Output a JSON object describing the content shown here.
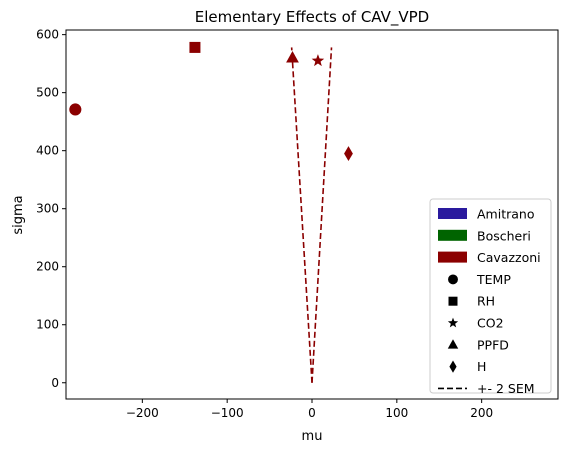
{
  "chart_data": {
    "type": "scatter",
    "title": "Elementary Effects of CAV_VPD",
    "xlabel": "mu",
    "ylabel": "sigma",
    "xlim": [
      -290,
      290
    ],
    "ylim": [
      -28,
      608
    ],
    "xticks": [
      -200,
      -100,
      0,
      100,
      200
    ],
    "xtick_labels": [
      "−200",
      "−100",
      "0",
      "100",
      "200"
    ],
    "yticks": [
      0,
      100,
      200,
      300,
      400,
      500,
      600
    ],
    "ytick_labels": [
      "0",
      "100",
      "200",
      "300",
      "400",
      "500",
      "600"
    ],
    "grid": false,
    "legend_placement": "lower-right",
    "series": [
      {
        "name": "TEMP",
        "marker": "circle",
        "x": -279,
        "y": 471,
        "color": "#8b0000"
      },
      {
        "name": "RH",
        "marker": "square",
        "x": -138,
        "y": 578,
        "color": "#8b0000"
      },
      {
        "name": "CO2",
        "marker": "star",
        "x": 7,
        "y": 555,
        "color": "#8b0000"
      },
      {
        "name": "PPFD",
        "marker": "triangle",
        "x": -23,
        "y": 560,
        "color": "#8b0000"
      },
      {
        "name": "H",
        "marker": "diamond",
        "x": 43,
        "y": 395,
        "color": "#8b0000"
      }
    ],
    "sem_lines": {
      "name": "+- 2 SEM",
      "color": "#8b0000",
      "left": {
        "x": [
          0,
          -24
        ],
        "y": [
          0,
          578
        ]
      },
      "right": {
        "x": [
          0,
          23
        ],
        "y": [
          0,
          578
        ]
      }
    },
    "legend": {
      "patches": [
        {
          "label": "Amitrano",
          "color": "#2a1a9e"
        },
        {
          "label": "Boscheri",
          "color": "#006400"
        },
        {
          "label": "Cavazzoni",
          "color": "#8b0000"
        }
      ],
      "markers": [
        {
          "label": "TEMP",
          "marker": "circle"
        },
        {
          "label": "RH",
          "marker": "square"
        },
        {
          "label": "CO2",
          "marker": "star"
        },
        {
          "label": "PPFD",
          "marker": "triangle"
        },
        {
          "label": "H",
          "marker": "diamond"
        }
      ],
      "line_label": "+- 2 SEM"
    }
  }
}
